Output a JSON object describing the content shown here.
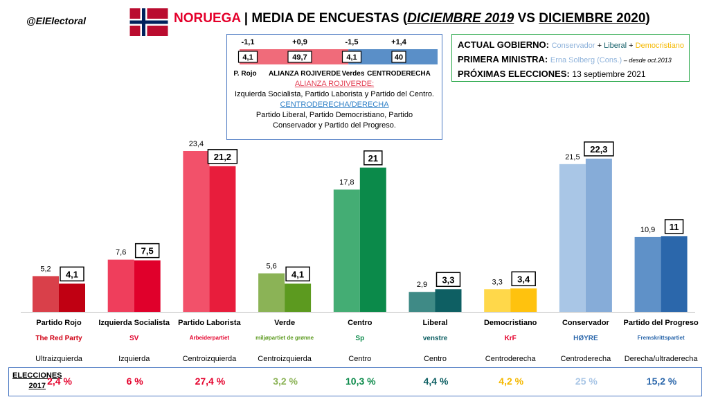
{
  "header": {
    "handle": "@ElElectoral",
    "country": "NORUEGA",
    "separator": "|",
    "title_a": "MEDIA DE ENCUESTAS (",
    "title_period_a": "DICIEMBRE 2019",
    "title_vs": " VS ",
    "title_period_b": "DICIEMBRE 2020",
    "title_close": ")"
  },
  "coalition_summary": {
    "segments": [
      {
        "label": "P. Rojo",
        "value": "4,1",
        "change": "-1,1",
        "color": "#f06b7a",
        "share": 4.1
      },
      {
        "label": "ALIANZA ROJIVERDE",
        "value": "49,7",
        "change": "+0,9",
        "color": "#f06b7a",
        "share": 49.7
      },
      {
        "label": "Verdes",
        "value": "4,1",
        "change": "-1,5",
        "color": "#5a8fc8",
        "share": 4.1
      },
      {
        "label": "CENTRODERECHA",
        "value": "40",
        "change": "+1,4",
        "color": "#5a8fc8",
        "share": 40
      }
    ],
    "left_heading": "ALIANZA ROJIVERDE:",
    "left_text": "Izquierda Socialista, Partido Laborista y Partido del Centro.",
    "right_heading": "CENTRODERECHA/DERECHA",
    "right_text_1": "Partido Liberal, Partido Democristiano, Partido",
    "right_text_2": "Conservador y Partido del Progreso."
  },
  "government": {
    "gov_label": "ACTUAL GOBIERNO:",
    "gov_cons": "Conservador",
    "gov_plus1": " + ",
    "gov_lib": "Liberal",
    "gov_plus2": " + ",
    "gov_dem": "Democristiano",
    "pm_label": "PRIMERA MINISTRA:",
    "pm_name": "Erna Solberg (Cons.)",
    "pm_note": " – desde oct.2013",
    "next_label": "PRÓXIMAS ELECCIONES:",
    "next_date": "13 septiembre 2021"
  },
  "chart_data": {
    "type": "bar",
    "title": "MEDIA DE ENCUESTAS (DICIEMBRE 2019 VS DICIEMBRE 2020)",
    "categories": [
      "Partido Rojo",
      "Izquierda Socialista",
      "Partido Laborista",
      "Verde",
      "Centro",
      "Liberal",
      "Democristiano",
      "Conservador",
      "Partido del Progreso"
    ],
    "series": [
      {
        "name": "DICIEMBRE 2019",
        "values": [
          5.2,
          7.6,
          23.4,
          5.6,
          17.8,
          2.9,
          3.3,
          21.5,
          10.9
        ],
        "labels": [
          "5,2",
          "7,6",
          "23,4",
          "5,6",
          "17,8",
          "2,9",
          "3,3",
          "21,5",
          "10,9"
        ]
      },
      {
        "name": "DICIEMBRE 2020",
        "values": [
          4.1,
          7.5,
          21.2,
          4.1,
          21,
          3.3,
          3.4,
          22.3,
          11
        ],
        "labels": [
          "4,1",
          "7,5",
          "21,2",
          "4,1",
          "21",
          "3,3",
          "3,4",
          "22,3",
          "11"
        ]
      }
    ],
    "colors_2019": [
      "#d9404a",
      "#ef3e5c",
      "#f2516a",
      "#8bb356",
      "#44ad74",
      "#3f8a86",
      "#ffd84a",
      "#a9c6e6",
      "#5f91c8"
    ],
    "colors_2020": [
      "#c00012",
      "#e0002b",
      "#e81d3c",
      "#5c9a1f",
      "#0b8a4a",
      "#0e5f63",
      "#ffc20e",
      "#86acd8",
      "#2b67ab"
    ],
    "ideology": [
      "Ultraizquierda",
      "Izquierda",
      "Centroizquierda",
      "Centroizquierda",
      "Centro",
      "Centro",
      "Centroderecha",
      "Centroderecha",
      "Derecha/ultraderecha"
    ],
    "ylim": [
      0,
      25
    ]
  },
  "party_logos": [
    {
      "text": "The Red Party",
      "color": "#d00014"
    },
    {
      "text": "SV",
      "color": "#e0002b"
    },
    {
      "text": "Arbeiderpartiet",
      "color": "#e4002b"
    },
    {
      "text": "miljøpartiet de grønne",
      "color": "#5c9a1f"
    },
    {
      "text": "Sp",
      "color": "#0b8a4a"
    },
    {
      "text": "venstre",
      "color": "#0e5f63"
    },
    {
      "text": "KrF",
      "color": "#e4002b"
    },
    {
      "text": "HØYRE",
      "color": "#2b67ab"
    },
    {
      "text": "Fremskrittspartiet",
      "color": "#2b67ab"
    }
  ],
  "elections_2017": {
    "label_1": "ELECCIONES",
    "label_2": "2017",
    "values": [
      "2,4 %",
      "6 %",
      "27,4 %",
      "3,2 %",
      "10,3 %",
      "4,4 %",
      "4,2 %",
      "25 %",
      "15,2 %"
    ],
    "colors": [
      "#e4002b",
      "#e4002b",
      "#e4002b",
      "#8bb356",
      "#0b8a4a",
      "#0e5f63",
      "#f5b800",
      "#a9c6e6",
      "#2b67ab"
    ]
  }
}
